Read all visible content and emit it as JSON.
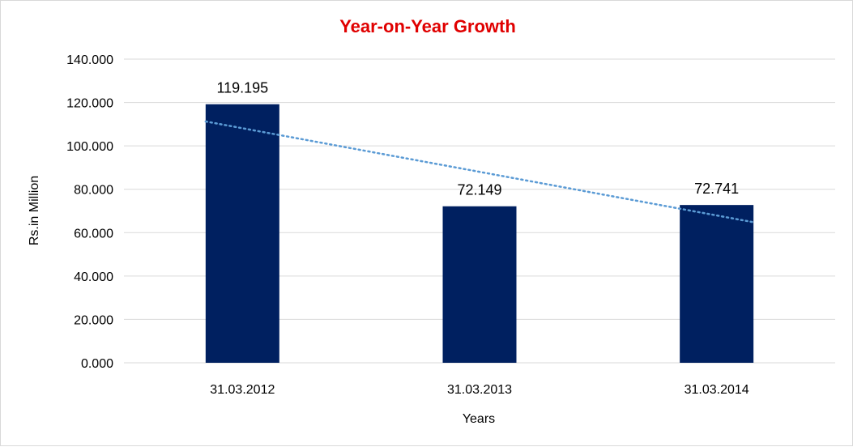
{
  "chart_data": {
    "type": "bar",
    "title": "Year-on-Year Growth",
    "xlabel": "Years",
    "ylabel": "Rs.in Million",
    "categories": [
      "31.03.2012",
      "31.03.2013",
      "31.03.2014"
    ],
    "values": [
      119.195,
      72.149,
      72.741
    ],
    "data_labels": [
      "119.195",
      "72.149",
      "72.741"
    ],
    "yticks": [
      "0.000",
      "20.000",
      "40.000",
      "60.000",
      "80.000",
      "100.000",
      "120.000",
      "140.000"
    ],
    "ylim": [
      0,
      140
    ],
    "grid": true,
    "legend": "none",
    "trendline": {
      "type": "linear",
      "style": "dotted"
    },
    "colors": {
      "bar": "#002060",
      "title": "#e00000",
      "trendline": "#5b9bd5",
      "grid": "#d9d9d9"
    }
  }
}
